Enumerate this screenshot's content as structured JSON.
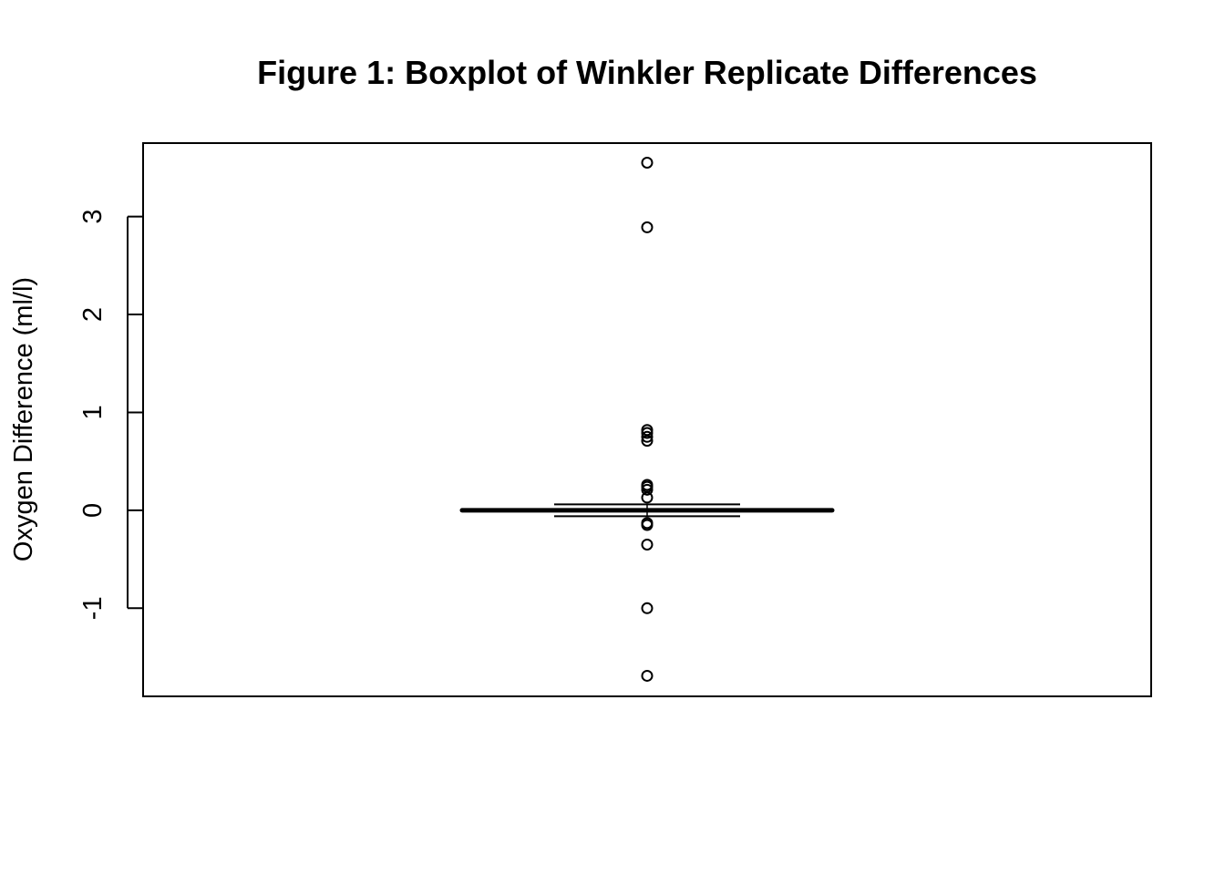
{
  "chart_data": {
    "type": "boxplot",
    "title": "Figure 1: Boxplot of Winkler Replicate Differences",
    "xlabel": "",
    "ylabel": "Oxygen Difference (ml/l)",
    "ylim": [
      -1.9,
      3.75
    ],
    "yticks": [
      -1,
      0,
      1,
      2,
      3
    ],
    "ytick_labels": [
      "-1",
      "0",
      "1",
      "2",
      "3"
    ],
    "grid": false,
    "box": {
      "min": -0.06,
      "q1": -0.01,
      "median": 0.0,
      "q3": 0.01,
      "max": 0.06
    },
    "outliers": [
      3.55,
      2.89,
      0.82,
      0.79,
      0.75,
      0.71,
      0.26,
      0.24,
      0.21,
      0.13,
      -0.13,
      -0.15,
      -0.35,
      -1.0,
      -1.69
    ]
  }
}
